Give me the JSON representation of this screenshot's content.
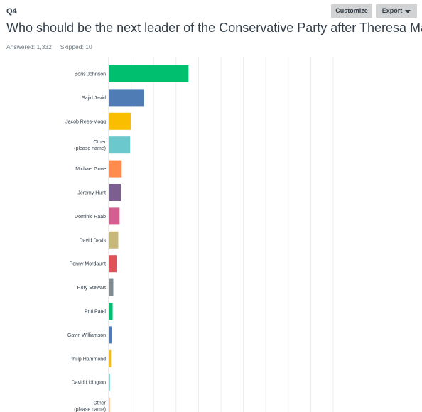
{
  "header": {
    "question_number": "Q4",
    "question_text": "Who should be the next leader of the Conservative Party after Theresa May?",
    "answered_label": "Answered: 1,332",
    "skipped_label": "Skipped: 10"
  },
  "toolbar": {
    "customize_label": "Customize",
    "export_label": "Export"
  },
  "chart_data": {
    "type": "bar",
    "orientation": "horizontal",
    "categories": [
      "Boris Johnson",
      "Sajid Javid",
      "Jacob Rees-Mogg",
      "Other (please name)",
      "Michael Gove",
      "Jeremy Hunt",
      "Dominic Raab",
      "David Davis",
      "Penny Mordaunt",
      "Rory Stewart",
      "Priti Patel",
      "Gavin Williamson",
      "Philip Hammond",
      "David Lidington",
      "Other (please name)"
    ],
    "values": [
      35.4,
      15.6,
      9.7,
      9.4,
      5.6,
      5.3,
      4.7,
      4.1,
      3.4,
      1.9,
      1.6,
      1.1,
      0.9,
      0.4,
      0.1
    ],
    "colors": [
      "#00bf6f",
      "#507cb6",
      "#f9be00",
      "#6bc8cd",
      "#ff8b4f",
      "#7d5e90",
      "#d25f90",
      "#c7b879",
      "#e05257",
      "#7f8c92",
      "#00bf6f",
      "#507cb6",
      "#f9be00",
      "#6bc8cd",
      "#ff8b4f"
    ],
    "xlim": [
      0,
      100
    ],
    "grid": true,
    "show_tick_labels": false
  }
}
